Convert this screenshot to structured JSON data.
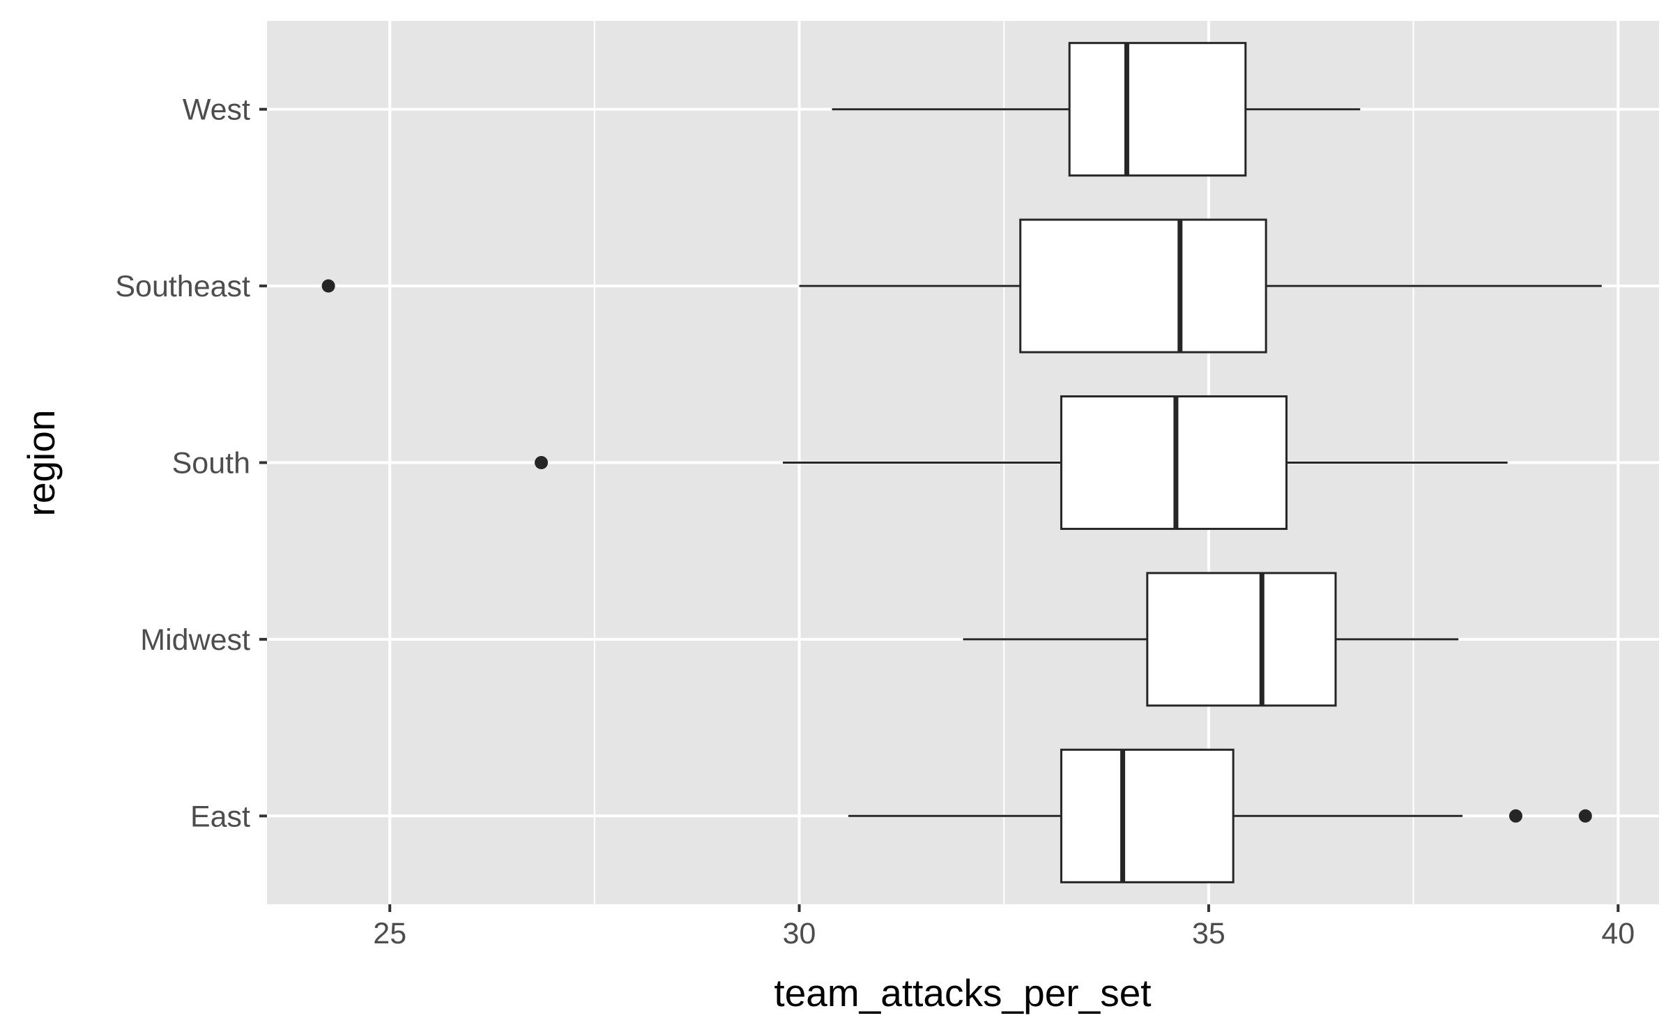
{
  "chart_data": {
    "type": "boxplot",
    "orientation": "horizontal",
    "xlabel": "team_attacks_per_set",
    "ylabel": "region",
    "xlim": [
      23.5,
      40.5
    ],
    "x_ticks": [
      25,
      30,
      35,
      40
    ],
    "x_minor_ticks": [
      27.5,
      32.5,
      37.5
    ],
    "grid": true,
    "legend": "none",
    "categories": [
      "East",
      "Midwest",
      "South",
      "Southeast",
      "West"
    ],
    "boxes": [
      {
        "category": "East",
        "whisker_low": 30.6,
        "q1": 33.2,
        "median": 33.95,
        "q3": 35.3,
        "whisker_high": 38.1,
        "outliers": [
          38.75,
          39.6
        ]
      },
      {
        "category": "Midwest",
        "whisker_low": 32.0,
        "q1": 34.25,
        "median": 35.65,
        "q3": 36.55,
        "whisker_high": 38.05,
        "outliers": []
      },
      {
        "category": "South",
        "whisker_low": 29.8,
        "q1": 33.2,
        "median": 34.6,
        "q3": 35.95,
        "whisker_high": 38.65,
        "outliers": [
          26.85
        ]
      },
      {
        "category": "Southeast",
        "whisker_low": 30.0,
        "q1": 32.7,
        "median": 34.65,
        "q3": 35.7,
        "whisker_high": 39.8,
        "outliers": [
          24.25
        ]
      },
      {
        "category": "West",
        "whisker_low": 30.4,
        "q1": 33.3,
        "median": 34.0,
        "q3": 35.45,
        "whisker_high": 36.85,
        "outliers": []
      }
    ],
    "colors": {
      "panel_background": "#e5e5e5",
      "grid": "#ffffff",
      "box_fill": "#ffffff",
      "box_stroke": "#262626",
      "tick_text": "#4d4d4d",
      "axis_title": "#000000"
    }
  }
}
